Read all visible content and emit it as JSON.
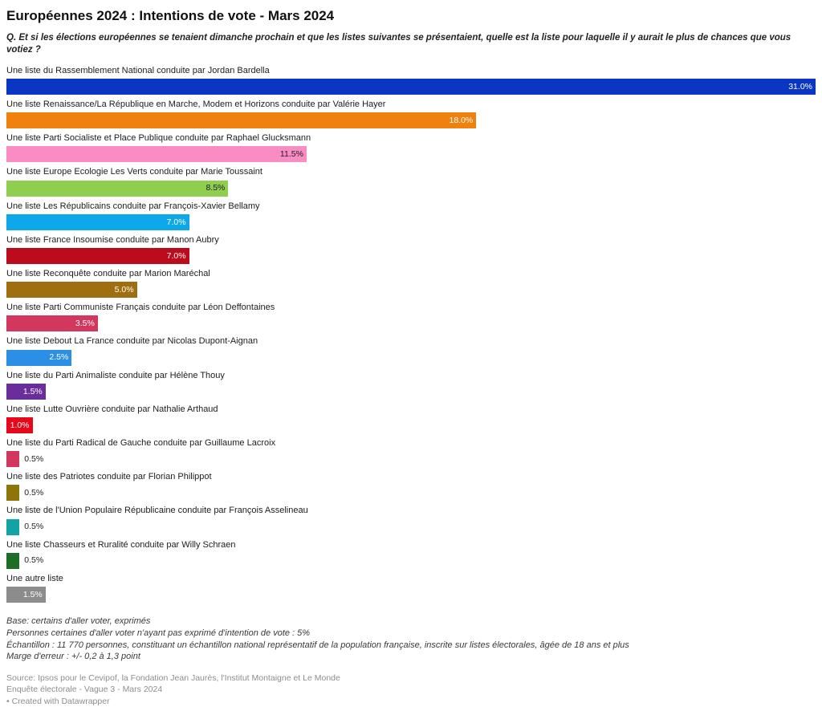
{
  "header": {
    "title": "Européennes 2024 : Intentions de vote - Mars 2024",
    "subtitle": "Q. Et si les élections européennes se tenaient dimanche prochain et que les listes suivantes se présentaient, quelle est la liste pour laquelle il y aurait le plus de chances que vous votiez ?"
  },
  "chart_data": {
    "type": "bar",
    "orientation": "horizontal",
    "title": "Européennes 2024 : Intentions de vote - Mars 2024",
    "xlabel": "",
    "ylabel": "",
    "xlim": [
      0,
      31
    ],
    "grid": false,
    "legend": false,
    "categories": [
      "Une liste du Rassemblement National conduite par Jordan Bardella",
      "Une liste Renaissance/La République en Marche, Modem et Horizons conduite par Valérie Hayer",
      "Une liste Parti Socialiste et Place Publique conduite par Raphael Glucksmann",
      "Une liste Europe Ecologie Les Verts conduite par Marie Toussaint",
      "Une liste Les Républicains conduite par François-Xavier Bellamy",
      "Une liste France Insoumise conduite par Manon Aubry",
      "Une liste Reconquête conduite par Marion Maréchal",
      "Une liste Parti Communiste Français conduite par Léon Deffontaines",
      "Une liste Debout La France conduite par Nicolas Dupont-Aignan",
      "Une liste du Parti Animaliste conduite par Hélène Thouy",
      "Une liste Lutte Ouvrière conduite par Nathalie Arthaud",
      "Une liste du Parti Radical de Gauche conduite par Guillaume Lacroix",
      "Une liste des Patriotes conduite par Florian Philippot",
      "Une liste de l'Union Populaire Républicaine conduite par François Asselineau",
      "Une liste Chasseurs et Ruralité conduite par Willy Schraen",
      "Une autre liste"
    ],
    "values": [
      31.0,
      18.0,
      11.5,
      8.5,
      7.0,
      7.0,
      5.0,
      3.5,
      2.5,
      1.5,
      1.0,
      0.5,
      0.5,
      0.5,
      0.5,
      1.5
    ],
    "rows": [
      {
        "label": "Une liste du Rassemblement National conduite par Jordan Bardella",
        "value": 31.0,
        "display": "31.0%",
        "color": "#0b36c4",
        "inside": true,
        "value_color": "#ffffff"
      },
      {
        "label": "Une liste Renaissance/La République en Marche, Modem et Horizons conduite par Valérie Hayer",
        "value": 18.0,
        "display": "18.0%",
        "color": "#ef810c",
        "inside": true,
        "value_color": "#ffffff"
      },
      {
        "label": "Une liste Parti Socialiste et Place Publique conduite par Raphael Glucksmann",
        "value": 11.5,
        "display": "11.5%",
        "color": "#f98cc3",
        "inside": true,
        "value_color": "#222222"
      },
      {
        "label": "Une liste Europe Ecologie Les Verts conduite par Marie Toussaint",
        "value": 8.5,
        "display": "8.5%",
        "color": "#8fce4e",
        "inside": true,
        "value_color": "#222222"
      },
      {
        "label": "Une liste Les Républicains conduite par François-Xavier Bellamy",
        "value": 7.0,
        "display": "7.0%",
        "color": "#0da8ea",
        "inside": true,
        "value_color": "#ffffff"
      },
      {
        "label": "Une liste France Insoumise conduite par Manon Aubry",
        "value": 7.0,
        "display": "7.0%",
        "color": "#bd0b1e",
        "inside": true,
        "value_color": "#ffffff"
      },
      {
        "label": "Une liste Reconquête conduite par Marion Maréchal",
        "value": 5.0,
        "display": "5.0%",
        "color": "#a06e0e",
        "inside": true,
        "value_color": "#ffffff"
      },
      {
        "label": "Une liste Parti Communiste Français conduite par Léon Deffontaines",
        "value": 3.5,
        "display": "3.5%",
        "color": "#d4375e",
        "inside": true,
        "value_color": "#ffffff"
      },
      {
        "label": "Une liste Debout La France conduite par Nicolas Dupont-Aignan",
        "value": 2.5,
        "display": "2.5%",
        "color": "#2a8fe5",
        "inside": true,
        "value_color": "#ffffff"
      },
      {
        "label": "Une liste du Parti Animaliste conduite par Hélène Thouy",
        "value": 1.5,
        "display": "1.5%",
        "color": "#6b2d9b",
        "inside": true,
        "value_color": "#ffffff"
      },
      {
        "label": "Une liste Lutte Ouvrière conduite par Nathalie Arthaud",
        "value": 1.0,
        "display": "1.0%",
        "color": "#e8071a",
        "inside": true,
        "value_color": "#ffffff"
      },
      {
        "label": "Une liste du Parti Radical de Gauche conduite par Guillaume Lacroix",
        "value": 0.5,
        "display": "0.5%",
        "color": "#d4375e",
        "inside": false,
        "value_color": "#222222"
      },
      {
        "label": "Une liste des Patriotes conduite par Florian Philippot",
        "value": 0.5,
        "display": "0.5%",
        "color": "#8f740a",
        "inside": false,
        "value_color": "#222222"
      },
      {
        "label": "Une liste de l'Union Populaire Républicaine conduite par François Asselineau",
        "value": 0.5,
        "display": "0.5%",
        "color": "#12a3a8",
        "inside": false,
        "value_color": "#222222"
      },
      {
        "label": "Une liste Chasseurs et Ruralité conduite par Willy Schraen",
        "value": 0.5,
        "display": "0.5%",
        "color": "#1c6e27",
        "inside": false,
        "value_color": "#222222"
      },
      {
        "label": "Une autre liste",
        "value": 1.5,
        "display": "1.5%",
        "color": "#8c8c8c",
        "inside": true,
        "value_color": "#ffffff"
      }
    ]
  },
  "footer": {
    "notes": [
      "Base: certains d'aller voter, exprimés",
      "Personnes certaines d'aller voter n'ayant pas exprimé d'intention de vote : 5%",
      "Échantillon : 11 770 personnes, constituant un échantillon national représentatif de la population française, inscrite sur listes électorales, âgée de 18 ans et plus",
      "Marge d'erreur : +/- 0,2 à 1,3 point"
    ],
    "sources": [
      "Source: Ipsos pour le Cevipof, la Fondation Jean Jaurès, l'Institut Montaigne et Le Monde",
      "Enquête électorale - Vague 3 - Mars 2024"
    ],
    "datawrapper_credit": "• Created with Datawrapper"
  }
}
